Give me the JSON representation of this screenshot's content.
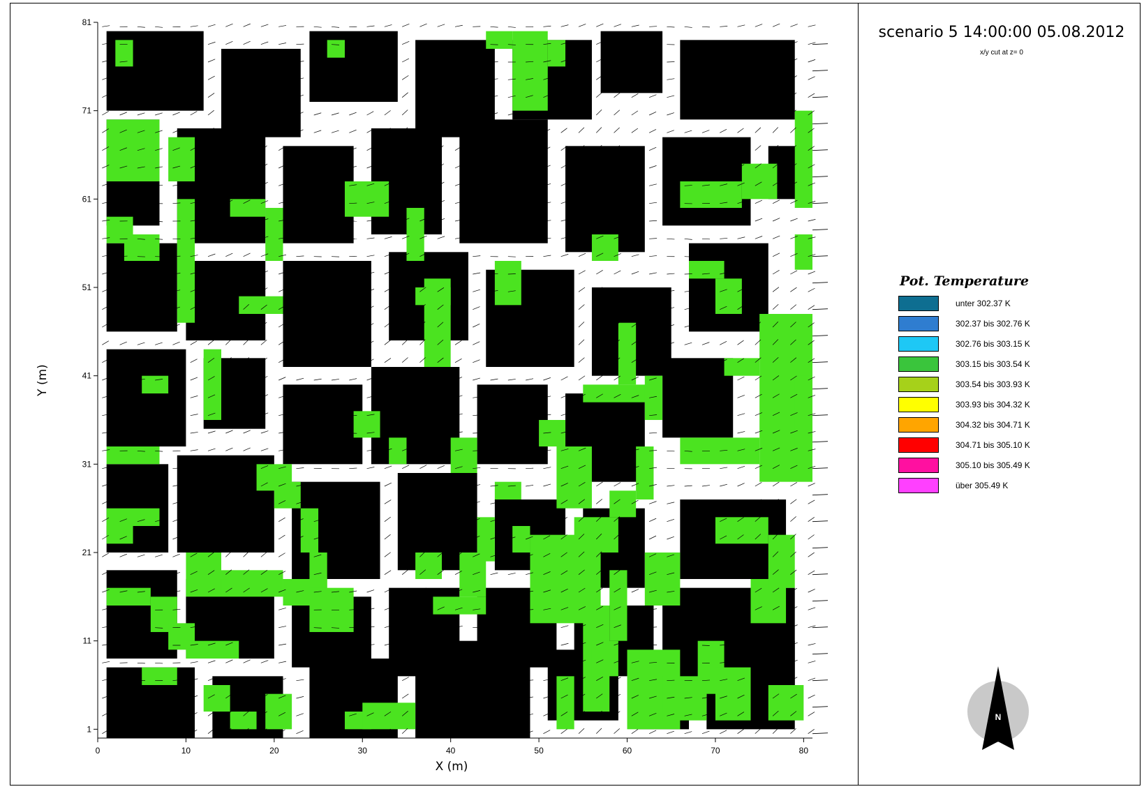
{
  "header": {
    "title": "scenario 5 14:00:00 05.08.2012",
    "subtitle": "x/y cut at z= 0"
  },
  "axes": {
    "xlabel": "X (m)",
    "ylabel": "Y (m)",
    "x_ticks": [
      "0",
      "10",
      "20",
      "30",
      "40",
      "50",
      "60",
      "70",
      "80"
    ],
    "y_ticks": [
      "1",
      "11",
      "21",
      "31",
      "41",
      "51",
      "61",
      "71",
      "81"
    ],
    "xlim": [
      0,
      81
    ],
    "ylim": [
      0,
      81
    ]
  },
  "map": {
    "building_color": "#000000",
    "vegetation_color": "#4be320",
    "open_color": "#ffffff",
    "wind_vector_color": "#000000"
  },
  "legend": {
    "title": "Pot. Temperature",
    "items": [
      {
        "label": "unter 302.37 K",
        "color": "#0e6e91"
      },
      {
        "label": "302.37 bis 302.76 K",
        "color": "#2f7dd0"
      },
      {
        "label": "302.76 bis 303.15 K",
        "color": "#1ec8f5"
      },
      {
        "label": "303.15 bis 303.54 K",
        "color": "#3ac53c"
      },
      {
        "label": "303.54 bis 303.93 K",
        "color": "#a6d11a"
      },
      {
        "label": "303.93 bis 304.32 K",
        "color": "#ffff00"
      },
      {
        "label": "304.32 bis 304.71 K",
        "color": "#ffa500"
      },
      {
        "label": "304.71 bis 305.10 K",
        "color": "#ff0000"
      },
      {
        "label": "305.10 bis 305.49 K",
        "color": "#ff10a0"
      },
      {
        "label": "über 305.49 K",
        "color": "#ff40ff"
      }
    ]
  },
  "north_arrow": {
    "label": "N"
  }
}
